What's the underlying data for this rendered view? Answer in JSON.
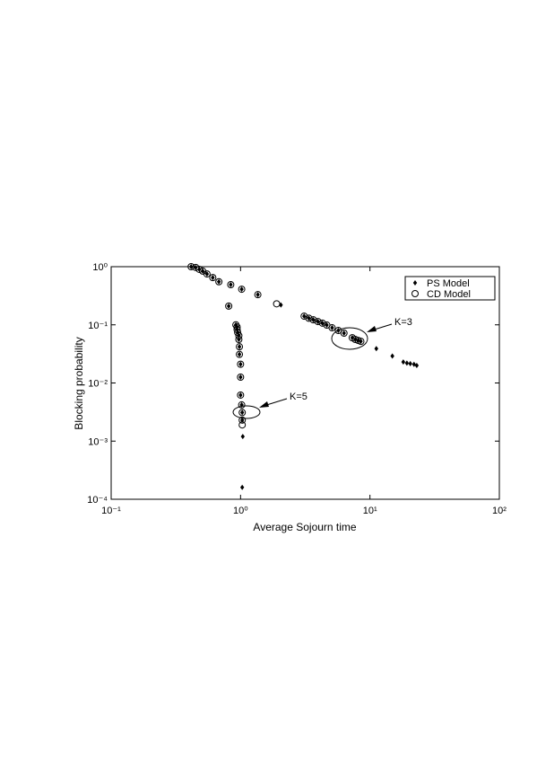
{
  "chart_data": {
    "type": "scatter",
    "x_label": "Average Sojourn time",
    "y_label": "Blocking probability",
    "xscale": "log",
    "yscale": "log",
    "xlim": [
      0.1,
      100
    ],
    "ylim": [
      0.0001,
      1
    ],
    "xticks": [
      {
        "value": 0.1,
        "label": "10⁻¹"
      },
      {
        "value": 1,
        "label": "10⁰"
      },
      {
        "value": 10,
        "label": "10¹"
      },
      {
        "value": 100,
        "label": "10²"
      }
    ],
    "yticks": [
      {
        "value": 0.0001,
        "label": "10⁻⁴"
      },
      {
        "value": 0.001,
        "label": "10⁻³"
      },
      {
        "value": 0.01,
        "label": "10⁻²"
      },
      {
        "value": 0.1,
        "label": "10⁻¹"
      },
      {
        "value": 1,
        "label": "10⁰"
      }
    ],
    "legend": "upper right",
    "series": [
      {
        "name": "PS Model",
        "marker": "diamond",
        "color": "#000000",
        "x": [
          0.415,
          0.45,
          0.48,
          0.51,
          0.55,
          0.61,
          0.68,
          0.84,
          1.02,
          1.36,
          2.05,
          3.1,
          3.37,
          3.65,
          3.96,
          4.29,
          4.64,
          5.1,
          5.7,
          6.3,
          7.3,
          7.7,
          8.1,
          8.5,
          11.2,
          14.9,
          18.1,
          19.3,
          20.5,
          21.9,
          23,
          0.81,
          0.92,
          0.94,
          0.94,
          0.95,
          0.97,
          0.97,
          0.98,
          0.98,
          1.0,
          1.0,
          1.0,
          1.02,
          1.03,
          1.03,
          1.04,
          1.03
        ],
        "values": [
          1.0,
          0.97,
          0.9,
          0.84,
          0.75,
          0.65,
          0.55,
          0.49,
          0.41,
          0.33,
          0.22,
          0.141,
          0.13,
          0.122,
          0.114,
          0.107,
          0.099,
          0.089,
          0.08,
          0.072,
          0.06,
          0.056,
          0.054,
          0.052,
          0.039,
          0.029,
          0.023,
          0.022,
          0.0215,
          0.0209,
          0.02,
          0.21,
          0.1,
          0.092,
          0.083,
          0.074,
          0.065,
          0.056,
          0.042,
          0.031,
          0.021,
          0.0126,
          0.0062,
          0.0042,
          0.0031,
          0.0023,
          0.0012,
          0.00016
        ]
      },
      {
        "name": "CD Model",
        "marker": "circle",
        "color": "#000000",
        "x": [
          0.415,
          0.45,
          0.48,
          0.51,
          0.55,
          0.61,
          0.68,
          0.84,
          1.02,
          1.36,
          1.9,
          3.1,
          3.37,
          3.65,
          3.96,
          4.29,
          4.64,
          5.1,
          5.7,
          6.3,
          7.3,
          7.7,
          8.1,
          8.5,
          0.81,
          0.92,
          0.94,
          0.94,
          0.95,
          0.97,
          0.97,
          0.98,
          0.98,
          1.0,
          1.0,
          1.0,
          1.02,
          1.03,
          1.03,
          1.03
        ],
        "values": [
          1.0,
          0.97,
          0.9,
          0.84,
          0.75,
          0.65,
          0.55,
          0.49,
          0.41,
          0.33,
          0.23,
          0.141,
          0.13,
          0.122,
          0.114,
          0.107,
          0.099,
          0.089,
          0.08,
          0.072,
          0.06,
          0.056,
          0.054,
          0.052,
          0.21,
          0.1,
          0.092,
          0.083,
          0.074,
          0.065,
          0.056,
          0.042,
          0.031,
          0.021,
          0.0126,
          0.0062,
          0.0042,
          0.0031,
          0.0023,
          0.0019
        ]
      }
    ],
    "annotations": [
      "K=3",
      "K=5"
    ]
  }
}
